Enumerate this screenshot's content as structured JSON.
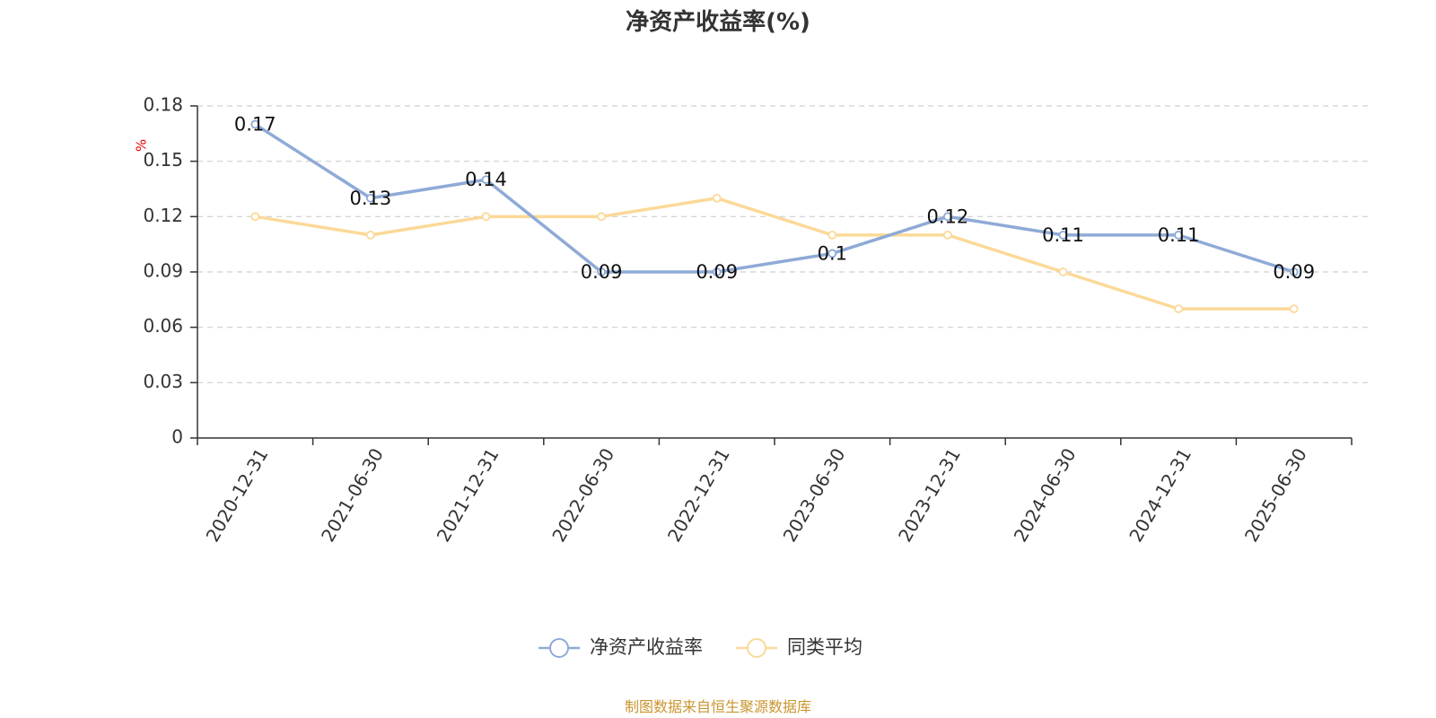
{
  "chart_data": {
    "type": "line",
    "title": "净资产收益率(%)",
    "ylabel": "%",
    "categories": [
      "2020-12-31",
      "2021-06-30",
      "2021-12-31",
      "2022-06-30",
      "2022-12-31",
      "2023-06-30",
      "2023-12-31",
      "2024-06-30",
      "2024-12-31",
      "2025-06-30"
    ],
    "ylim": [
      0,
      0.18
    ],
    "yticks": [
      "0",
      "0.03",
      "0.06",
      "0.09",
      "0.12",
      "0.15",
      "0.18"
    ],
    "grid": true,
    "legend_position": "bottom-center",
    "series": [
      {
        "name": "净资产收益率",
        "color": "#8eaad6",
        "values": [
          0.17,
          0.13,
          0.14,
          0.09,
          0.09,
          0.1,
          0.12,
          0.11,
          0.11,
          0.09
        ],
        "labels": [
          "0.17",
          "0.13",
          "0.14",
          "0.09",
          "0.09",
          "0.1",
          "0.12",
          "0.11",
          "0.11",
          "0.09"
        ]
      },
      {
        "name": "同类平均",
        "color": "#fbd998",
        "values": [
          0.12,
          0.11,
          0.12,
          0.12,
          0.13,
          0.11,
          0.11,
          0.09,
          0.07,
          0.07
        ]
      }
    ]
  },
  "source_note": "制图数据来自恒生聚源数据库"
}
